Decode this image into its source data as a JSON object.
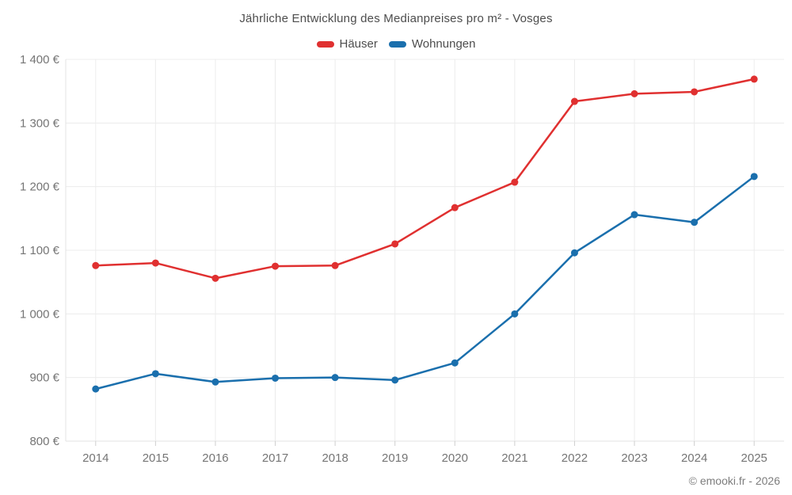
{
  "title": "Jährliche Entwicklung des Medianpreises pro m² - Vosges",
  "legend": [
    {
      "label": "Häuser",
      "color": "#e03030"
    },
    {
      "label": "Wohnungen",
      "color": "#1a6fad"
    }
  ],
  "footer": {
    "copyright": "© emooki.fr - 2026"
  },
  "chart_data": {
    "type": "line",
    "title": "Jährliche Entwicklung des Medianpreises pro m² - Vosges",
    "x": [
      "2014",
      "2015",
      "2016",
      "2017",
      "2018",
      "2019",
      "2020",
      "2021",
      "2022",
      "2023",
      "2024",
      "2025"
    ],
    "series": [
      {
        "name": "Häuser",
        "color": "#e03030",
        "values": [
          1076,
          1080,
          1056,
          1075,
          1076,
          1110,
          1167,
          1207,
          1334,
          1346,
          1349,
          1369
        ]
      },
      {
        "name": "Wohnungen",
        "color": "#1a6fad",
        "values": [
          882,
          906,
          893,
          899,
          900,
          896,
          923,
          1000,
          1096,
          1156,
          1144,
          1216
        ]
      }
    ],
    "xlabel": "",
    "ylabel": "",
    "ylim": [
      800,
      1400
    ],
    "yticks": [
      800,
      900,
      1000,
      1100,
      1200,
      1300,
      1400
    ],
    "ytick_labels": [
      "800 €",
      "900 €",
      "1 000 €",
      "1 100 €",
      "1 200 €",
      "1 300 €",
      "1 400 €"
    ],
    "grid": true,
    "legend_position": "top",
    "marker": "circle"
  }
}
